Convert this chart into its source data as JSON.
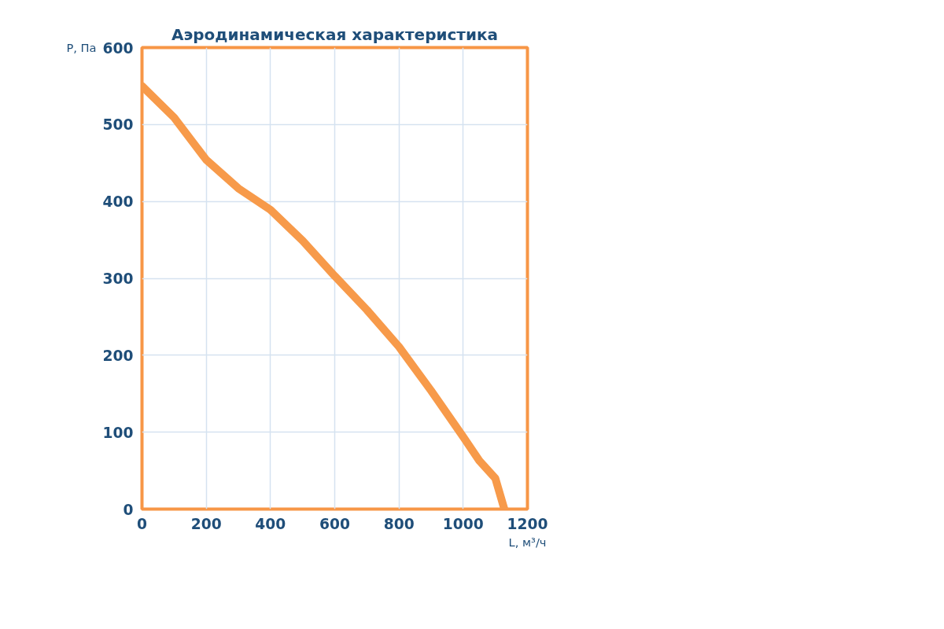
{
  "chart_data": {
    "type": "line",
    "title": "Аэродинамическая характеристика",
    "xlabel": "L, м³/ч",
    "ylabel": "P, Па",
    "x": [
      0,
      100,
      200,
      300,
      400,
      500,
      600,
      700,
      800,
      900,
      1000,
      1050,
      1100,
      1128
    ],
    "series": [
      {
        "color": "#f79a4a",
        "values": [
          550,
          509,
          454,
          417,
          389,
          349,
          303,
          259,
          211,
          154,
          94,
          63,
          40,
          0
        ]
      }
    ],
    "xlim": [
      0,
      1200
    ],
    "ylim": [
      0,
      600
    ],
    "xticks": [
      0,
      200,
      400,
      600,
      800,
      1000,
      1200
    ],
    "yticks": [
      0,
      100,
      200,
      300,
      400,
      500,
      600
    ],
    "grid": true,
    "marker": "none",
    "line_style": "solid"
  }
}
